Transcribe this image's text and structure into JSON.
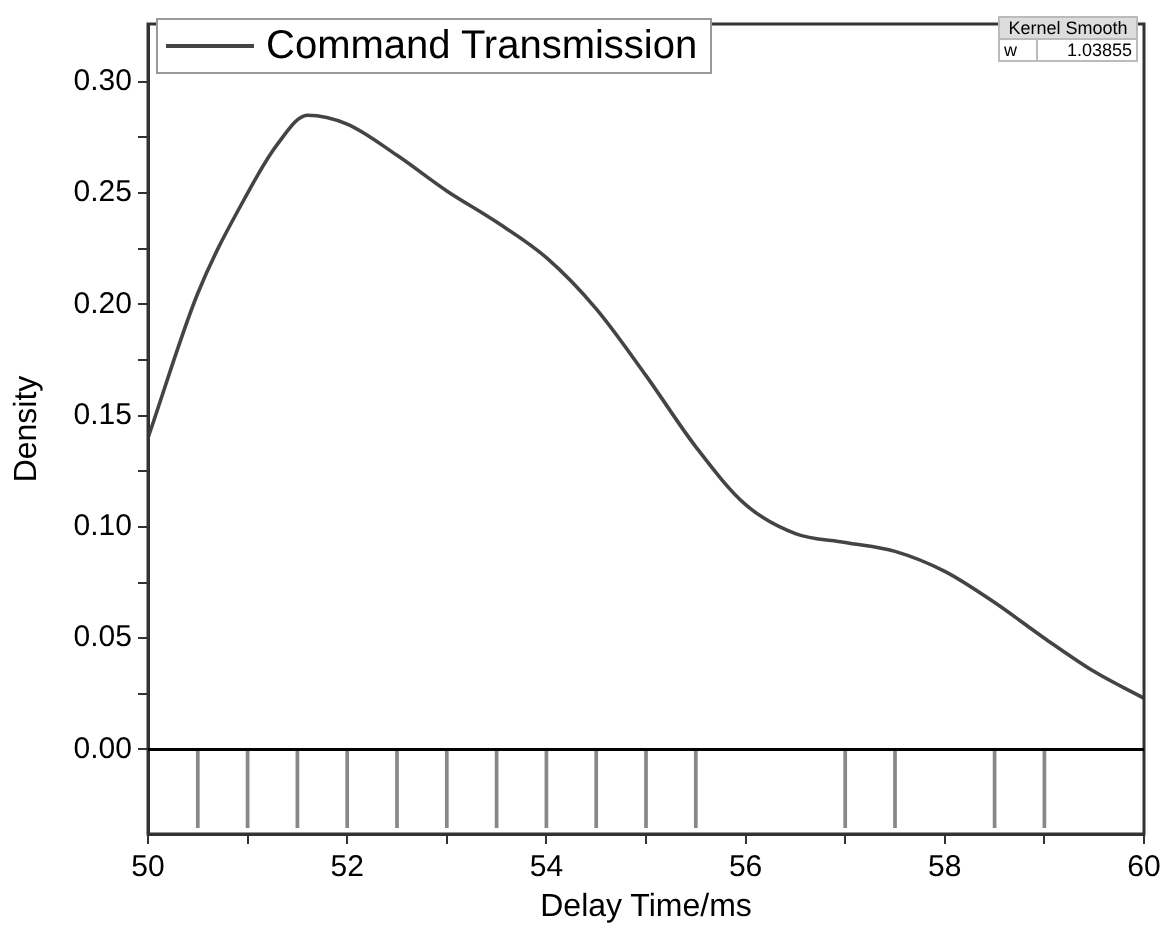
{
  "chart_data": {
    "type": "line",
    "xlabel": "Delay Time/ms",
    "ylabel": "Density",
    "xlim": [
      50,
      60
    ],
    "ylim": [
      -0.038,
      0.326
    ],
    "xticks": [
      50,
      {
        "value": 51,
        "label": null
      },
      52,
      {
        "value": 53,
        "label": null
      },
      54,
      {
        "value": 55,
        "label": null
      },
      56,
      {
        "value": 57,
        "label": null
      },
      58,
      {
        "value": 59,
        "label": null
      },
      60
    ],
    "yticks": [
      {
        "value": 0,
        "label": "0.00"
      },
      {
        "value": 0.025,
        "label": null
      },
      {
        "value": 0.05,
        "label": "0.05"
      },
      {
        "value": 0.075,
        "label": null
      },
      {
        "value": 0.1,
        "label": "0.10"
      },
      {
        "value": 0.125,
        "label": null
      },
      {
        "value": 0.15,
        "label": "0.15"
      },
      {
        "value": 0.175,
        "label": null
      },
      {
        "value": 0.2,
        "label": "0.20"
      },
      {
        "value": 0.225,
        "label": null
      },
      {
        "value": 0.25,
        "label": "0.25"
      },
      {
        "value": 0.275,
        "label": null
      },
      {
        "value": 0.3,
        "label": "0.30"
      }
    ],
    "series": [
      {
        "name": "Command Transmission",
        "color": "#444444",
        "x": [
          50,
          50.5,
          51,
          51.3,
          51.6,
          52,
          52.5,
          53,
          53.5,
          54,
          54.5,
          55,
          55.5,
          56,
          56.5,
          57,
          57.5,
          58,
          58.5,
          59,
          59.5,
          60
        ],
        "values": [
          0.14,
          0.205,
          0.25,
          0.272,
          0.285,
          0.281,
          0.267,
          0.251,
          0.237,
          0.221,
          0.198,
          0.168,
          0.136,
          0.11,
          0.097,
          0.093,
          0.089,
          0.08,
          0.066,
          0.05,
          0.035,
          0.023
        ]
      },
      {
        "type": "bar",
        "color": "#888888",
        "x": [
          50.5,
          51,
          51.5,
          52,
          52.5,
          53,
          53.5,
          54,
          54.5,
          55,
          55.5,
          57,
          57.5,
          58.5,
          59
        ],
        "values": [
          -0.035,
          -0.035,
          -0.035,
          -0.035,
          -0.035,
          -0.035,
          -0.035,
          -0.035,
          -0.035,
          -0.035,
          -0.035,
          -0.035,
          -0.035,
          -0.035,
          -0.035
        ]
      }
    ],
    "ref_lines": [
      {
        "axis": "y",
        "value": 0,
        "color": "#000000"
      }
    ],
    "annotations": [
      "Kernel Smooth",
      "w",
      "1.03855"
    ],
    "legend": "top left",
    "grid": false,
    "marker": "none",
    "line_style": "solid"
  }
}
